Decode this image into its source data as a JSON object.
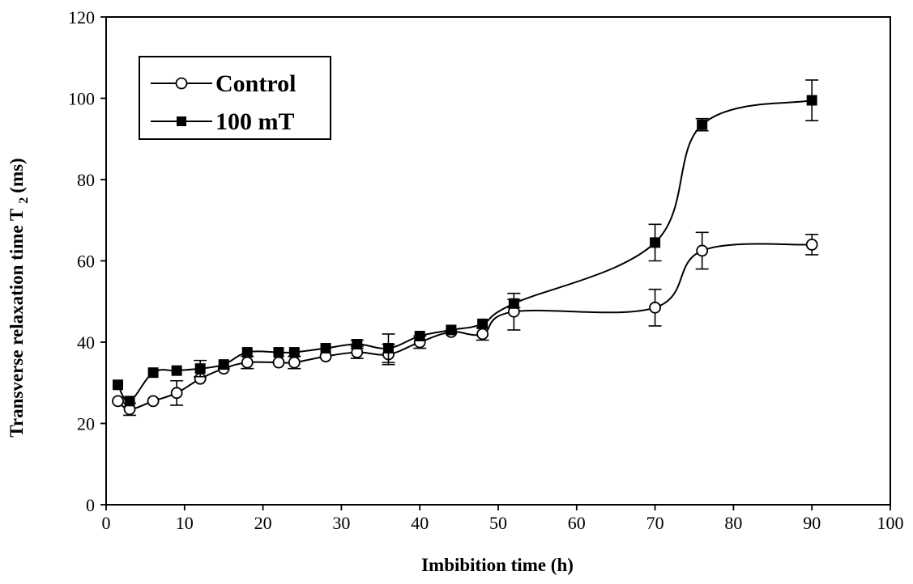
{
  "chart_data": {
    "type": "line",
    "xlabel": "Imbibition time (h)",
    "ylabel_main": "Transverse relaxation time T",
    "ylabel_sub": "2",
    "ylabel_unit": "(ms)",
    "xlim": [
      0,
      100
    ],
    "ylim": [
      0,
      120
    ],
    "x_ticks": [
      "0",
      "10",
      "20",
      "30",
      "40",
      "50",
      "60",
      "70",
      "80",
      "90",
      "100"
    ],
    "y_ticks": [
      "0",
      "20",
      "40",
      "60",
      "80",
      "100",
      "120"
    ],
    "grid": false,
    "legend_position": "top-left",
    "series": [
      {
        "name": "Control",
        "marker": "open-circle",
        "color": "#000000",
        "x": [
          1.5,
          3,
          6,
          9,
          12,
          15,
          18,
          22,
          24,
          28,
          32,
          36,
          40,
          44,
          48,
          52,
          70,
          76,
          90
        ],
        "y": [
          25.5,
          23.5,
          25.5,
          27.5,
          31,
          33.5,
          35,
          35,
          35,
          36.5,
          37.5,
          37,
          40,
          42.5,
          42,
          47.5,
          48.5,
          62.5,
          64
        ],
        "error": [
          0,
          1.5,
          0,
          3,
          0,
          0,
          1.5,
          0,
          1.5,
          0,
          1.5,
          2.5,
          1.5,
          0,
          1.5,
          4.5,
          4.5,
          4.5,
          2.5
        ]
      },
      {
        "name": "100 mT",
        "marker": "filled-square",
        "color": "#000000",
        "x": [
          1.5,
          3,
          6,
          9,
          12,
          15,
          18,
          22,
          24,
          28,
          32,
          36,
          40,
          44,
          48,
          52,
          70,
          76,
          90
        ],
        "y": [
          29.5,
          25.5,
          32.5,
          33,
          33.5,
          34.5,
          37.5,
          37.5,
          37.5,
          38.5,
          39.5,
          38.5,
          41.5,
          43,
          44.5,
          49.5,
          64.5,
          93.5,
          99.5
        ],
        "error": [
          0,
          0,
          0,
          0,
          2,
          0,
          0,
          0,
          0,
          0,
          1,
          3.5,
          0,
          0,
          0,
          1,
          4.5,
          1.5,
          5
        ]
      }
    ]
  }
}
